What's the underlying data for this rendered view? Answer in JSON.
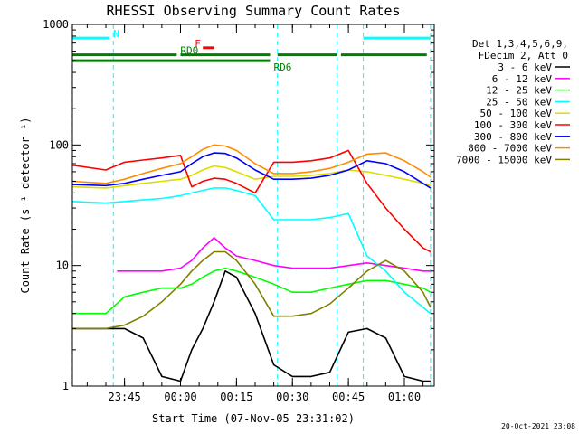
{
  "chart_data": {
    "type": "line",
    "title": "RHESSI Observing Summary Count Rates",
    "xlabel": "Start Time (07-Nov-05 23:31:02)",
    "ylabel": "Count Rate (s⁻¹ detector⁻¹)",
    "x_start": "23:31:02",
    "xlim": [
      "23:31:02",
      "01:08:00"
    ],
    "x_ticks": [
      "23:45",
      "00:00",
      "00:15",
      "00:30",
      "00:45",
      "01:00"
    ],
    "y_scale": "log",
    "ylim": [
      1,
      1000
    ],
    "y_ticks": [
      1,
      10,
      100,
      1000
    ],
    "y_tick_labels": [
      "1",
      "10",
      "100",
      "1000"
    ],
    "grid": false,
    "legend_position": "right",
    "legend_header": [
      "Det 1,3,4,5,6,9,",
      "FDecim 2, Att 0"
    ],
    "footer_stamp": "20-Oct-2021 23:08",
    "series": [
      {
        "name": "3 - 6 keV",
        "color": "#000000",
        "x": [
          "23:31",
          "23:45",
          "23:50",
          "23:55",
          "00:00",
          "00:03",
          "00:06",
          "00:09",
          "00:12",
          "00:15",
          "00:20",
          "00:25",
          "00:30",
          "00:35",
          "00:40",
          "00:45",
          "00:50",
          "00:55",
          "01:00",
          "01:05",
          "01:07"
        ],
        "y": [
          3,
          3,
          2.5,
          1.2,
          1.1,
          2,
          3,
          5,
          9,
          8,
          4,
          1.5,
          1.2,
          1.2,
          1.3,
          2.8,
          3,
          2.5,
          1.2,
          1.1,
          1.1
        ]
      },
      {
        "name": "6 - 12 keV",
        "color": "#ff00ff",
        "x": [
          "23:43",
          "23:50",
          "23:55",
          "00:00",
          "00:03",
          "00:06",
          "00:09",
          "00:12",
          "00:15",
          "00:20",
          "00:25",
          "00:30",
          "00:35",
          "00:40",
          "00:45",
          "00:50",
          "00:55",
          "01:00",
          "01:05",
          "01:07"
        ],
        "y": [
          9,
          9,
          9,
          9.5,
          11,
          14,
          17,
          14,
          12,
          11,
          10,
          9.5,
          9.5,
          9.5,
          10,
          10.5,
          10,
          9.5,
          9,
          9
        ]
      },
      {
        "name": "12 - 25 keV",
        "color": "#00ff00",
        "x": [
          "23:31",
          "23:40",
          "23:45",
          "23:50",
          "23:55",
          "00:00",
          "00:03",
          "00:06",
          "00:09",
          "00:12",
          "00:15",
          "00:20",
          "00:25",
          "00:30",
          "00:35",
          "00:40",
          "00:45",
          "00:50",
          "00:55",
          "01:00",
          "01:05",
          "01:07"
        ],
        "y": [
          4,
          4,
          5.5,
          6,
          6.5,
          6.5,
          7,
          8,
          9,
          9.5,
          9,
          8,
          7,
          6,
          6,
          6.5,
          7,
          7.5,
          7.5,
          7,
          6.5,
          6
        ]
      },
      {
        "name": "25 - 50 keV",
        "color": "#00ffff",
        "x": [
          "23:31",
          "23:40",
          "23:45",
          "23:50",
          "23:55",
          "00:00",
          "00:03",
          "00:06",
          "00:09",
          "00:12",
          "00:15",
          "00:20",
          "00:25",
          "00:30",
          "00:35",
          "00:40",
          "00:45",
          "00:50",
          "00:55",
          "01:00",
          "01:05",
          "01:07"
        ],
        "y": [
          34,
          33,
          34,
          35,
          36,
          38,
          40,
          42,
          44,
          44,
          42,
          38,
          24,
          24,
          24,
          25,
          27,
          12,
          9,
          6,
          4.5,
          4
        ]
      },
      {
        "name": "50 - 100 keV",
        "color": "#dddd00",
        "x": [
          "23:31",
          "23:40",
          "23:45",
          "23:50",
          "23:55",
          "00:00",
          "00:03",
          "00:06",
          "00:09",
          "00:12",
          "00:15",
          "00:20",
          "00:25",
          "00:30",
          "00:35",
          "00:40",
          "00:45",
          "00:50",
          "00:55",
          "01:00",
          "01:05",
          "01:07"
        ],
        "y": [
          45,
          44,
          46,
          48,
          50,
          52,
          56,
          62,
          67,
          65,
          60,
          52,
          55,
          55,
          56,
          58,
          62,
          60,
          56,
          52,
          48,
          46
        ]
      },
      {
        "name": "100 - 300 keV",
        "color": "#ff0000",
        "x": [
          "23:31",
          "23:40",
          "23:45",
          "23:50",
          "23:55",
          "00:00",
          "00:03",
          "00:06",
          "00:09",
          "00:12",
          "00:15",
          "00:20",
          "00:25",
          "00:30",
          "00:35",
          "00:40",
          "00:45",
          "00:50",
          "00:55",
          "01:00",
          "01:05",
          "01:07"
        ],
        "y": [
          68,
          62,
          72,
          75,
          78,
          82,
          45,
          50,
          53,
          52,
          48,
          40,
          72,
          72,
          74,
          78,
          90,
          48,
          30,
          20,
          14,
          13
        ]
      },
      {
        "name": "300 - 800 keV",
        "color": "#0000ff",
        "x": [
          "23:31",
          "23:40",
          "23:45",
          "23:50",
          "23:55",
          "00:00",
          "00:03",
          "00:06",
          "00:09",
          "00:12",
          "00:15",
          "00:20",
          "00:25",
          "00:30",
          "00:35",
          "00:40",
          "00:45",
          "00:50",
          "00:55",
          "01:00",
          "01:05",
          "01:07"
        ],
        "y": [
          47,
          46,
          48,
          52,
          56,
          60,
          70,
          80,
          86,
          85,
          78,
          62,
          52,
          52,
          53,
          56,
          62,
          74,
          70,
          60,
          48,
          44
        ]
      },
      {
        "name": "800 - 7000 keV",
        "color": "#ff8c00",
        "x": [
          "23:31",
          "23:40",
          "23:45",
          "23:50",
          "23:55",
          "00:00",
          "00:03",
          "00:06",
          "00:09",
          "00:12",
          "00:15",
          "00:20",
          "00:25",
          "00:30",
          "00:35",
          "00:40",
          "00:45",
          "00:50",
          "00:55",
          "01:00",
          "01:05",
          "01:07"
        ],
        "y": [
          50,
          48,
          52,
          58,
          64,
          70,
          80,
          92,
          100,
          98,
          90,
          70,
          58,
          58,
          60,
          64,
          72,
          84,
          86,
          74,
          60,
          54
        ]
      },
      {
        "name": "7000 - 15000 keV",
        "color": "#808000",
        "x": [
          "23:31",
          "23:40",
          "23:45",
          "23:50",
          "23:55",
          "00:00",
          "00:03",
          "00:06",
          "00:09",
          "00:12",
          "00:15",
          "00:20",
          "00:25",
          "00:30",
          "00:35",
          "00:40",
          "00:45",
          "00:50",
          "00:55",
          "01:00",
          "01:05",
          "01:07"
        ],
        "y": [
          3,
          3,
          3.2,
          3.8,
          5,
          7,
          9,
          11,
          13,
          13,
          11,
          7,
          3.8,
          3.8,
          4,
          4.8,
          6.5,
          9,
          11,
          9,
          6,
          4.5
        ]
      }
    ],
    "annotations": [
      {
        "label": "N",
        "color": "#00ffff",
        "x_start": "23:31",
        "x_end": "23:41",
        "level": 770
      },
      {
        "label": "N",
        "color": "#00ffff",
        "x_start": "00:49",
        "x_end": "01:07",
        "level": 770
      },
      {
        "label": "F",
        "color": "#ff0000",
        "x_start": "00:06",
        "x_end": "00:09",
        "level": 640
      },
      {
        "label": "RD0",
        "color": "#008000",
        "x_start": "23:31",
        "x_end": "23:59",
        "level": 560
      },
      {
        "label": "RD0",
        "color": "#008000",
        "x_start": "00:00",
        "x_end": "00:24",
        "level": 560
      },
      {
        "label": "RD0",
        "color": "#008000",
        "x_start": "00:26",
        "x_end": "00:42",
        "level": 560
      },
      {
        "label": "RD0",
        "color": "#008000",
        "x_start": "00:43",
        "x_end": "01:06",
        "level": 560
      },
      {
        "label": "RD6",
        "color": "#008000",
        "x_start": "23:31",
        "x_end": "00:24",
        "level": 500
      }
    ],
    "vertical_markers": [
      "23:31",
      "23:42",
      "00:26",
      "00:42",
      "00:49",
      "01:07"
    ]
  }
}
